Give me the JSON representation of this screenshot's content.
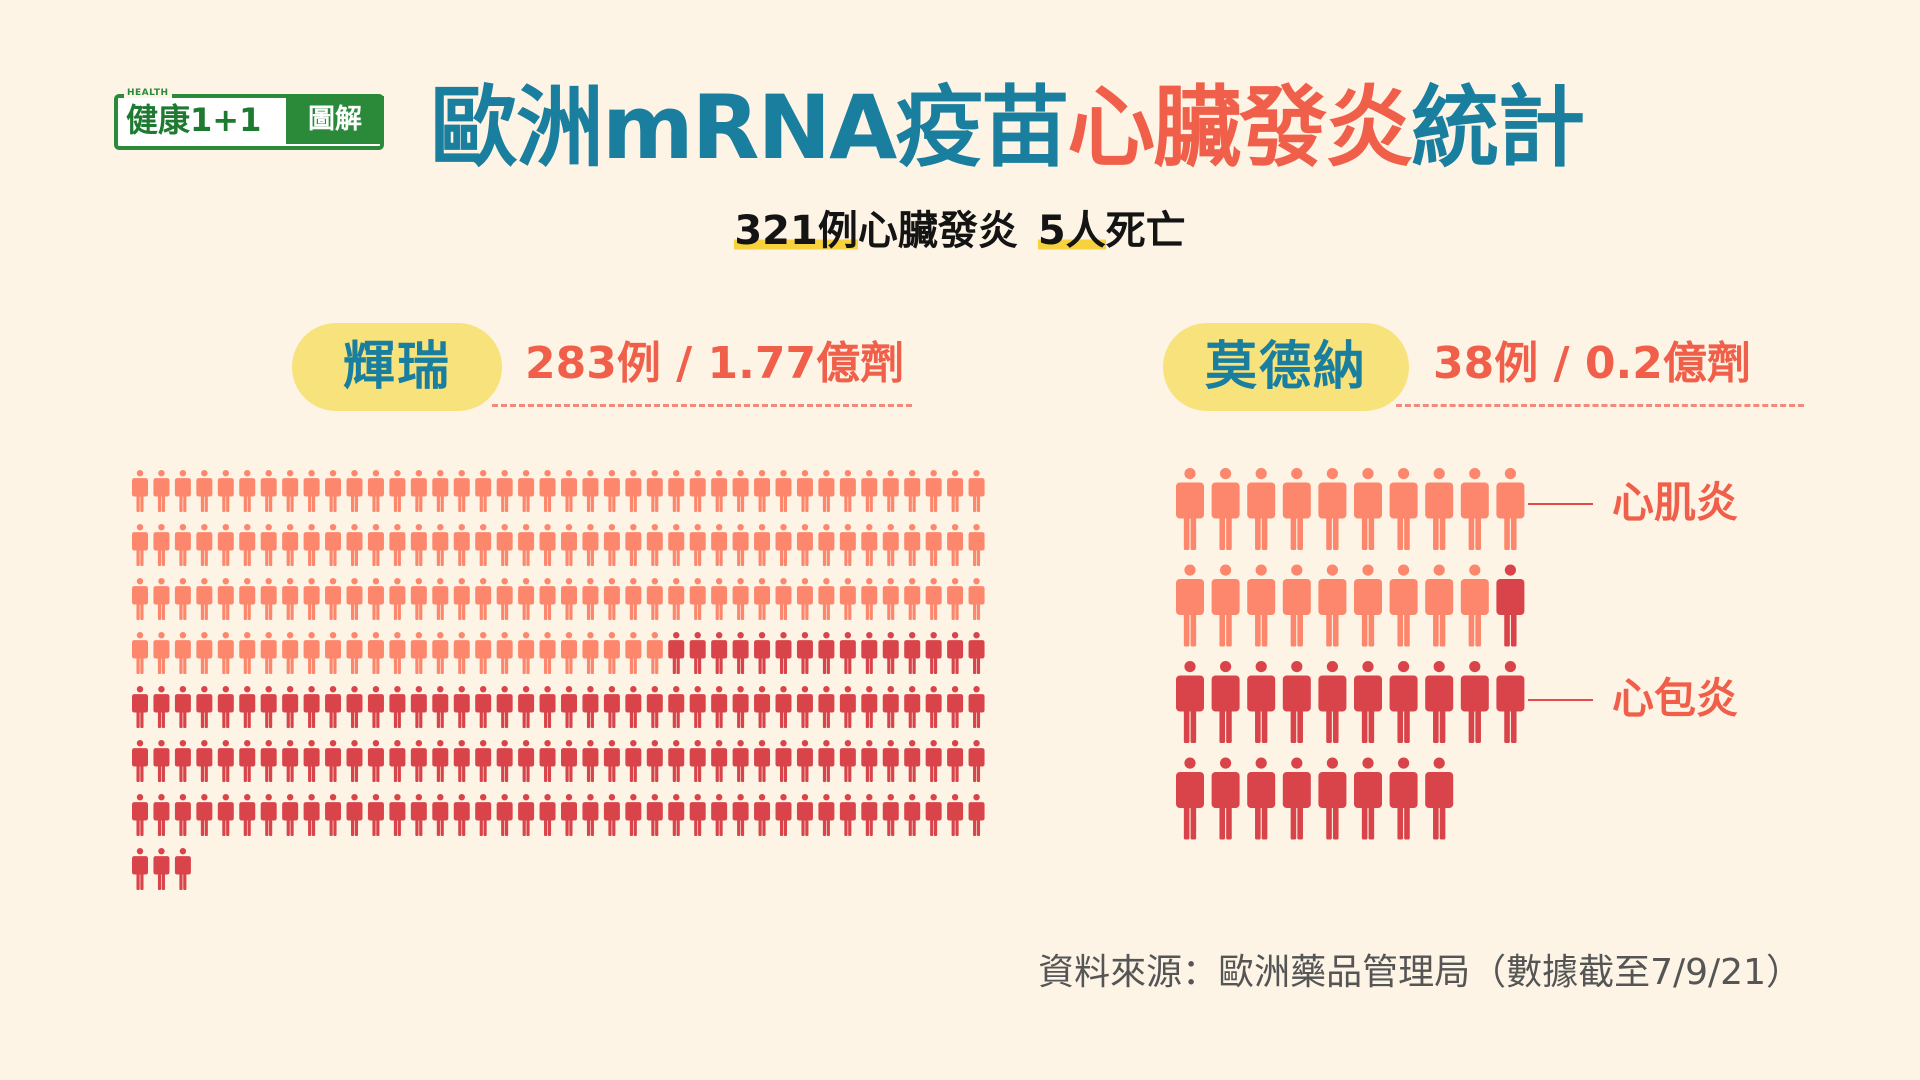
{
  "logo": {
    "tag": "HEALTH",
    "brand": "健康1+1",
    "suffix": "圖解"
  },
  "title": {
    "part1": "歐洲mRNA疫苗",
    "part2": "心臟發炎",
    "part3": "統計"
  },
  "subtitle": {
    "count": "321例",
    "text1": "心臟發炎",
    "deaths": "5人",
    "text2": "死亡"
  },
  "colors": {
    "myocarditis": "#fd876c",
    "pericarditis": "#d9444a",
    "title_blue": "#1a7f9e",
    "title_red": "#f05f4a",
    "pill": "#f8e27b"
  },
  "chart_data": [
    {
      "type": "pictogram",
      "title": "輝瑞",
      "subtitle": "283例 / 1.77億劑",
      "total_cases": 283,
      "doses": "1.77億劑",
      "categories": [
        "心肌炎",
        "心包炎"
      ],
      "values": [
        145,
        138
      ],
      "icons_per_row": 40
    },
    {
      "type": "pictogram",
      "title": "莫德納",
      "subtitle": "38例 / 0.2億劑",
      "total_cases": 38,
      "doses": "0.2億劑",
      "categories": [
        "心肌炎",
        "心包炎"
      ],
      "values": [
        19,
        19
      ],
      "icons_per_row": 10
    }
  ],
  "labels": {
    "myocarditis": "心肌炎",
    "pericarditis": "心包炎"
  },
  "source": "資料來源：歐洲藥品管理局（數據截至7/9/21）"
}
